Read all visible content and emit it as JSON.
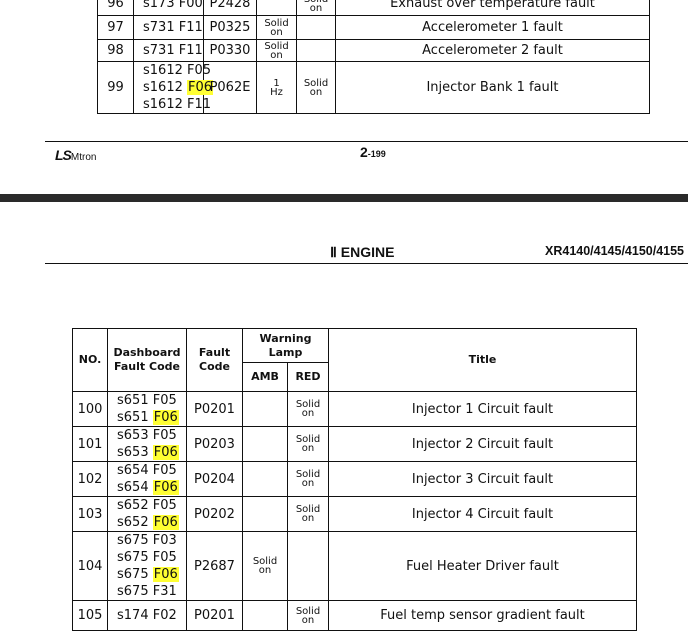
{
  "top_table": {
    "rows": [
      {
        "no": "96",
        "codes": [
          {
            "s": "s173",
            "f": "F00",
            "hl": false
          }
        ],
        "fault": "P2428",
        "amb": "",
        "red": "Solid on",
        "title": "Exhaust over temperature fault"
      },
      {
        "no": "97",
        "codes": [
          {
            "s": "s731",
            "f": "F11",
            "hl": false
          }
        ],
        "fault": "P0325",
        "amb": "Solid on",
        "red": "",
        "title": "Accelerometer 1 fault"
      },
      {
        "no": "98",
        "codes": [
          {
            "s": "s731",
            "f": "F11",
            "hl": false
          }
        ],
        "fault": "P0330",
        "amb": "Solid on",
        "red": "",
        "title": "Accelerometer 2 fault"
      },
      {
        "no": "99",
        "codes": [
          {
            "s": "s1612",
            "f": "F05",
            "hl": false
          },
          {
            "s": "s1612",
            "f": "F06",
            "hl": true
          },
          {
            "s": "s1612",
            "f": "F11",
            "hl": false
          }
        ],
        "fault": "P062E",
        "amb": "1 Hz",
        "red": "Solid on",
        "title": "Injector Bank 1 fault"
      }
    ]
  },
  "footer": {
    "logo": "LS Mtron",
    "page_chapter": "2",
    "page_number": "-199"
  },
  "header": {
    "section": "Ⅱ ENGINE",
    "model": "XR4140/4145/4150/4155"
  },
  "highlight_color": "#ffff33",
  "main_table": {
    "headers": {
      "no": "NO.",
      "dashboard": "Dashboard Fault Code",
      "fault": "Fault Code",
      "warning_lamp": "Warning Lamp",
      "amb": "AMB",
      "red": "RED",
      "title": "Title"
    },
    "rows": [
      {
        "no": "100",
        "codes": [
          {
            "s": "s651",
            "f": "F05",
            "hl": false
          },
          {
            "s": "s651",
            "f": "F06",
            "hl": true
          }
        ],
        "fault": "P0201",
        "amb": "",
        "red": "Solid on",
        "title": "Injector 1 Circuit fault"
      },
      {
        "no": "101",
        "codes": [
          {
            "s": "s653",
            "f": "F05",
            "hl": false
          },
          {
            "s": "s653",
            "f": "F06",
            "hl": true
          }
        ],
        "fault": "P0203",
        "amb": "",
        "red": "Solid on",
        "title": "Injector 2 Circuit fault"
      },
      {
        "no": "102",
        "codes": [
          {
            "s": "s654",
            "f": "F05",
            "hl": false
          },
          {
            "s": "s654",
            "f": "F06",
            "hl": true
          }
        ],
        "fault": "P0204",
        "amb": "",
        "red": "Solid on",
        "title": "Injector 3 Circuit fault"
      },
      {
        "no": "103",
        "codes": [
          {
            "s": "s652",
            "f": "F05",
            "hl": false
          },
          {
            "s": "s652",
            "f": "F06",
            "hl": true
          }
        ],
        "fault": "P0202",
        "amb": "",
        "red": "Solid on",
        "title": "Injector 4 Circuit fault"
      },
      {
        "no": "104",
        "codes": [
          {
            "s": "s675",
            "f": "F03",
            "hl": false
          },
          {
            "s": "s675",
            "f": "F05",
            "hl": false
          },
          {
            "s": "s675",
            "f": "F06",
            "hl": true
          },
          {
            "s": "s675",
            "f": "F31",
            "hl": false
          }
        ],
        "fault": "P2687",
        "amb": "Solid on",
        "red": "",
        "title": "Fuel Heater Driver fault"
      },
      {
        "no": "105",
        "codes": [
          {
            "s": "s174",
            "f": "F02",
            "hl": false
          }
        ],
        "fault": "P0201",
        "amb": "",
        "red": "Solid on",
        "title": "Fuel temp sensor gradient fault"
      }
    ]
  }
}
